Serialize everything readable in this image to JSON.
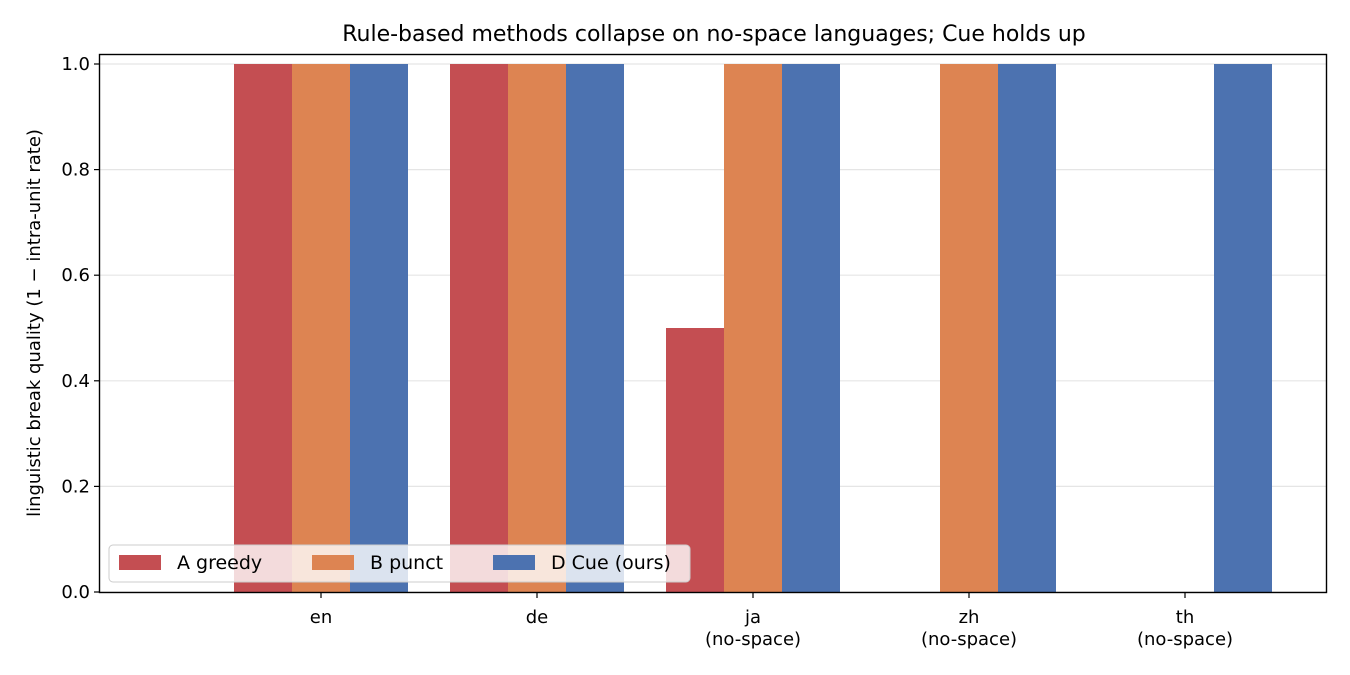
{
  "chart_data": {
    "type": "bar",
    "title": "Rule-based methods collapse on no-space languages; Cue holds up",
    "xlabel": "",
    "ylabel": "linguistic break quality  (1 − intra-unit rate)",
    "ylim": [
      0,
      1.02
    ],
    "yticks": [
      "0.0",
      "0.2",
      "0.4",
      "0.6",
      "0.8",
      "1.0"
    ],
    "grid": "horizontal",
    "legend_position": "lower-left",
    "categories": [
      [
        "en"
      ],
      [
        "de"
      ],
      [
        "ja",
        "(no-space)"
      ],
      [
        "zh",
        "(no-space)"
      ],
      [
        "th",
        "(no-space)"
      ]
    ],
    "series": [
      {
        "name": "A greedy",
        "color": "#c44e52",
        "values": [
          1.0,
          1.0,
          0.5,
          0.0,
          0.0
        ]
      },
      {
        "name": "B punct",
        "color": "#dd8452",
        "values": [
          1.0,
          1.0,
          1.0,
          1.0,
          0.0
        ]
      },
      {
        "name": "D Cue (ours)",
        "color": "#4c72b0",
        "values": [
          1.0,
          1.0,
          1.0,
          1.0,
          1.0
        ]
      }
    ]
  }
}
